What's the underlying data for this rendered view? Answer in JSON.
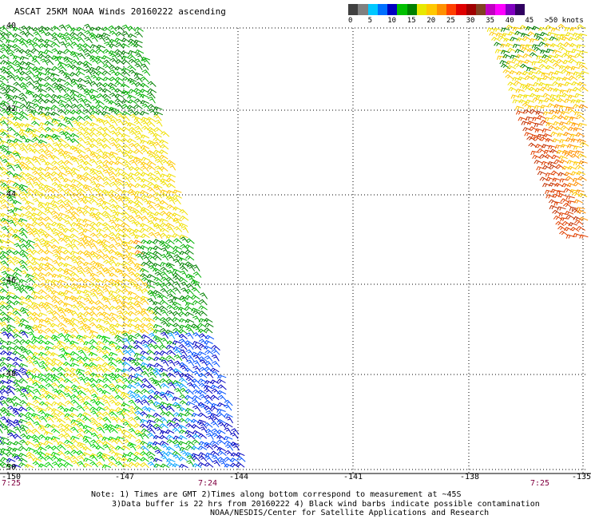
{
  "title": "ASCAT 25KM NOAA Winds 20160222 ascending",
  "legend": {
    "colors": [
      "#404040",
      "#808080",
      "#00c8ff",
      "#0070ff",
      "#0000c0",
      "#00c000",
      "#008000",
      "#e8e800",
      "#ffc800",
      "#ff9000",
      "#ff4000",
      "#e00000",
      "#a00000",
      "#804020",
      "#c000c0",
      "#ff00ff",
      "#8000c0",
      "#300060"
    ],
    "ticks": [
      "0",
      "5",
      "10",
      "15",
      "20",
      "25",
      "30",
      "35",
      "40",
      "45",
      ">50 knots"
    ]
  },
  "latitudes": [
    "-40",
    "-42",
    "-44",
    "-46",
    "-48",
    "-50"
  ],
  "longitudes": [
    "-150",
    "-147",
    "-144",
    "-141",
    "-138",
    "-135"
  ],
  "pass_times": [
    "7:25",
    "7:24",
    "7:25"
  ],
  "notes": [
    "Note: 1) Times are GMT 2)Times along bottom correspond to measurement at ~45S",
    "3)Data buffer is 22 hrs from 20160222 4) Black wind barbs indicate possible contamination",
    "NOAA/NESDIS/Center for Satellite Applications and Research"
  ]
}
